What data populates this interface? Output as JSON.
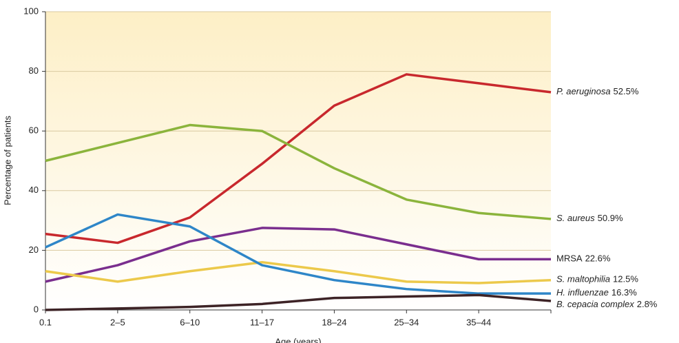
{
  "chart_data": {
    "type": "line",
    "y_label": "Percentage of patients",
    "x_label": "Age (years)",
    "categories": [
      "0.1",
      "2–5",
      "6–10",
      "11–17",
      "18–24",
      "25–34",
      "35–44",
      null
    ],
    "ylim": [
      0,
      100
    ],
    "yticks": [
      0,
      20,
      40,
      60,
      80,
      100
    ],
    "grid": true,
    "series": [
      {
        "name": "P. aeruginosa",
        "italic": true,
        "total": {
          "value": 52.5,
          "label": "52.5%"
        },
        "color": "#c8282d",
        "values": [
          25.5,
          22.5,
          31,
          49,
          68.5,
          79,
          76,
          73
        ]
      },
      {
        "name": "S. aureus",
        "italic": true,
        "total": {
          "value": 50.9,
          "label": "50.9%"
        },
        "color": "#8bb43c",
        "values": [
          50,
          56,
          62,
          60,
          47.5,
          37,
          32.5,
          30.5
        ]
      },
      {
        "name": "MRSA",
        "italic": false,
        "total": {
          "value": 22.6,
          "label": "22.6%"
        },
        "color": "#7a2e8e",
        "values": [
          9.5,
          15,
          23,
          27.5,
          27,
          22,
          17,
          17
        ]
      },
      {
        "name": "S. maltophilia",
        "italic": true,
        "total": {
          "value": 12.5,
          "label": "12.5%"
        },
        "color": "#ecc94b",
        "values": [
          13,
          9.5,
          13,
          16,
          13,
          9.5,
          9,
          10
        ]
      },
      {
        "name": "H. influenzae",
        "italic": true,
        "total": {
          "value": 16.3,
          "label": "16.3%"
        },
        "color": "#2e86c8",
        "values": [
          21,
          32,
          28,
          15,
          10,
          7,
          5.5,
          5.5
        ]
      },
      {
        "name": "B. cepacia complex",
        "italic": true,
        "total": {
          "value": 2.8,
          "label": "2.8%"
        },
        "color": "#3d2326",
        "values": [
          0,
          0.5,
          1,
          2,
          4,
          4.5,
          5,
          3
        ]
      }
    ]
  }
}
